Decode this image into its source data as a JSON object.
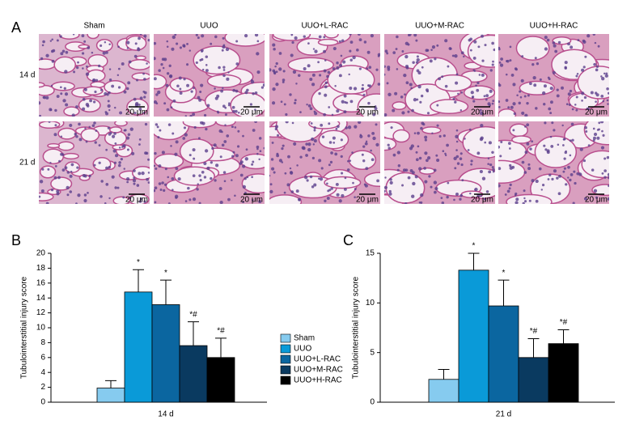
{
  "panel_a": {
    "label": "A",
    "columns": [
      "Sham",
      "UUO",
      "UUO+L-RAC",
      "UUO+M-RAC",
      "UUO+H-RAC"
    ],
    "rows": [
      "14 d",
      "21 d"
    ],
    "scale_bar": "20 μm"
  },
  "chart_data": [
    {
      "type": "bar",
      "panel_label": "B",
      "y_label": "Tubulointerstitial injury score",
      "categories": [
        "14 d"
      ],
      "ylim": [
        0,
        20
      ],
      "yticks": [
        0,
        2,
        4,
        6,
        8,
        10,
        12,
        14,
        16,
        18,
        20
      ],
      "legend": true,
      "series": [
        {
          "name": "Sham",
          "color": "#86cbef",
          "values": [
            1.9
          ],
          "errors": [
            1.0
          ]
        },
        {
          "name": "UUO",
          "color": "#0a9ad8",
          "values": [
            14.8
          ],
          "errors": [
            3.0
          ],
          "annotations": [
            "*"
          ]
        },
        {
          "name": "UUO+L-RAC",
          "color": "#0b66a0",
          "values": [
            13.1
          ],
          "errors": [
            3.3
          ],
          "annotations": [
            "*"
          ]
        },
        {
          "name": "UUO+M-RAC",
          "color": "#0a3a60",
          "values": [
            7.6
          ],
          "errors": [
            3.2
          ],
          "annotations": [
            "*#"
          ]
        },
        {
          "name": "UUO+H-RAC",
          "color": "#000000",
          "values": [
            6.0
          ],
          "errors": [
            2.6
          ],
          "annotations": [
            "*#"
          ]
        }
      ]
    },
    {
      "type": "bar",
      "panel_label": "C",
      "y_label": "Tubulointerstitial injury score",
      "categories": [
        "21 d"
      ],
      "ylim": [
        0,
        15
      ],
      "yticks": [
        0,
        5,
        10,
        15
      ],
      "series": [
        {
          "color": "#86cbef",
          "values": [
            2.3
          ],
          "errors": [
            1.0
          ]
        },
        {
          "color": "#0a9ad8",
          "values": [
            13.3
          ],
          "errors": [
            1.7
          ],
          "annotations": [
            "*"
          ]
        },
        {
          "color": "#0b66a0",
          "values": [
            9.7
          ],
          "errors": [
            2.6
          ],
          "annotations": [
            "*"
          ]
        },
        {
          "color": "#0a3a60",
          "values": [
            4.5
          ],
          "errors": [
            1.9
          ],
          "annotations": [
            "*#"
          ]
        },
        {
          "color": "#000000",
          "values": [
            5.9
          ],
          "errors": [
            1.4
          ],
          "annotations": [
            "*#"
          ]
        }
      ]
    }
  ]
}
